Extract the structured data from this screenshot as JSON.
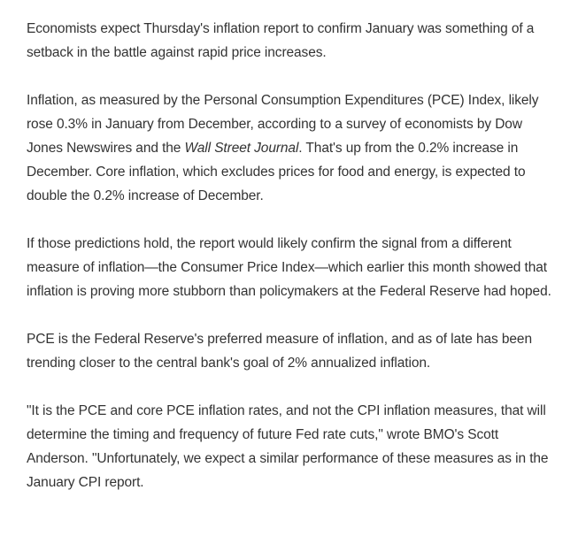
{
  "article": {
    "paragraphs": [
      {
        "text": "Economists expect Thursday's inflation report to confirm January was something of a setback in the battle against rapid price increases."
      },
      {
        "before": "Inflation, as measured by the Personal Consumption Expenditures (PCE) Index, likely rose 0.3% in January from December, according to a survey of economists by Dow Jones Newswires and the ",
        "italic": "Wall Street Journal",
        "after": ". That's up from the 0.2% increase in December. Core inflation, which excludes prices for food and energy, is expected to double the 0.2% increase of December."
      },
      {
        "text": "If those predictions hold, the report would likely confirm the signal from a different measure of inflation—the Consumer Price Index—which earlier this month showed that inflation is proving more stubborn than policymakers at the Federal Reserve had hoped."
      },
      {
        "text": "PCE is the Federal Reserve's preferred measure of inflation, and as of late has been trending closer to the central bank's goal of 2% annualized inflation."
      },
      {
        "text": "\"It is the PCE and core PCE inflation rates, and not the CPI inflation measures, that will determine the timing and frequency of future Fed rate cuts,\" wrote BMO's Scott Anderson. \"Unfortunately, we expect a similar performance of these measures as in the January CPI report."
      }
    ]
  }
}
